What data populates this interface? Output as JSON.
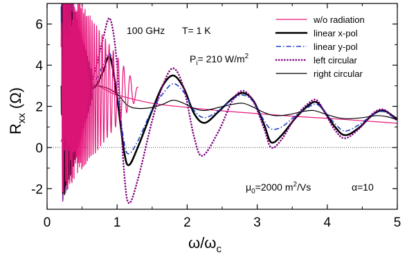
{
  "chart_data": {
    "type": "line",
    "xlim": [
      0,
      5
    ],
    "ylim": [
      -3,
      7
    ],
    "xticks": [
      0,
      1,
      2,
      3,
      4,
      5
    ],
    "yticks": [
      -2,
      0,
      2,
      4,
      6
    ],
    "xlabel": {
      "main": "ω/ω",
      "sub": "c"
    },
    "ylabel": {
      "main": "R",
      "sub": "xx",
      "unit": "(Ω)"
    },
    "annotations": {
      "frequency": "100 GHz",
      "temperature": "T= 1 K",
      "power": {
        "main": "P",
        "sub": "i",
        "mid": "= 210 W/m",
        "sup": "2"
      },
      "mobility": {
        "main": "μ",
        "sub": "0",
        "mid": "=2000 m",
        "sup": "2",
        "end": "/Vs"
      },
      "alpha": "α=10"
    },
    "legend_position": "top-right",
    "series": [
      {
        "name": "w/o radiation",
        "color": "#e6157a",
        "style": "solid-thin",
        "points": [
          [
            0.2,
            0.3
          ],
          [
            0.55,
            2.95
          ],
          [
            1.0,
            2.55
          ],
          [
            1.5,
            2.15
          ],
          [
            2.0,
            1.95
          ],
          [
            2.5,
            1.78
          ],
          [
            3.0,
            1.65
          ],
          [
            3.5,
            1.52
          ],
          [
            4.0,
            1.42
          ],
          [
            4.5,
            1.3
          ],
          [
            5.0,
            1.18
          ]
        ],
        "oscillation": "SdH oscillations decaying to ~ω/ω_c = 1.2"
      },
      {
        "name": "linear x-pol",
        "color": "#000000",
        "style": "solid-thick",
        "points": [
          [
            0.6,
            2.8
          ],
          [
            0.7,
            3.0
          ],
          [
            0.8,
            3.7
          ],
          [
            0.9,
            4.4
          ],
          [
            1.0,
            2.4
          ],
          [
            1.1,
            -0.2
          ],
          [
            1.17,
            -0.85
          ],
          [
            1.3,
            0.05
          ],
          [
            1.5,
            1.8
          ],
          [
            1.65,
            3.0
          ],
          [
            1.8,
            3.5
          ],
          [
            1.95,
            2.9
          ],
          [
            2.1,
            1.65
          ],
          [
            2.25,
            1.2
          ],
          [
            2.45,
            1.75
          ],
          [
            2.65,
            2.4
          ],
          [
            2.8,
            2.65
          ],
          [
            2.95,
            2.25
          ],
          [
            3.1,
            1.1
          ],
          [
            3.2,
            0.25
          ],
          [
            3.35,
            0.6
          ],
          [
            3.55,
            1.45
          ],
          [
            3.75,
            2.1
          ],
          [
            3.85,
            2.2
          ],
          [
            3.95,
            1.8
          ],
          [
            4.1,
            1.05
          ],
          [
            4.25,
            0.6
          ],
          [
            4.45,
            0.95
          ],
          [
            4.65,
            1.6
          ],
          [
            4.8,
            1.8
          ],
          [
            4.95,
            1.5
          ],
          [
            5.0,
            1.38
          ]
        ]
      },
      {
        "name": "linear y-pol",
        "color": "#1a3ec8",
        "style": "dashdot",
        "points": [
          [
            0.6,
            2.9
          ],
          [
            0.7,
            3.3
          ],
          [
            0.8,
            4.0
          ],
          [
            0.9,
            4.55
          ],
          [
            1.0,
            2.7
          ],
          [
            1.1,
            0.25
          ],
          [
            1.17,
            -0.3
          ],
          [
            1.3,
            0.35
          ],
          [
            1.5,
            1.85
          ],
          [
            1.65,
            2.6
          ],
          [
            1.8,
            3.1
          ],
          [
            1.95,
            2.7
          ],
          [
            2.1,
            1.8
          ],
          [
            2.25,
            1.45
          ],
          [
            2.45,
            1.8
          ],
          [
            2.65,
            2.35
          ],
          [
            2.8,
            2.55
          ],
          [
            2.95,
            2.2
          ],
          [
            3.1,
            1.3
          ],
          [
            3.2,
            0.9
          ],
          [
            3.35,
            1.0
          ],
          [
            3.55,
            1.55
          ],
          [
            3.75,
            2.0
          ],
          [
            3.85,
            2.1
          ],
          [
            3.95,
            1.8
          ],
          [
            4.1,
            1.2
          ],
          [
            4.25,
            0.8
          ],
          [
            4.45,
            1.1
          ],
          [
            4.65,
            1.6
          ],
          [
            4.8,
            1.75
          ],
          [
            4.95,
            1.45
          ],
          [
            5.0,
            1.33
          ]
        ]
      },
      {
        "name": "left circular",
        "color": "#800080",
        "style": "dotted-thick",
        "points": [
          [
            0.6,
            2.8
          ],
          [
            0.7,
            3.9
          ],
          [
            0.8,
            5.3
          ],
          [
            0.9,
            6.25
          ],
          [
            1.0,
            4.0
          ],
          [
            1.1,
            -1.2
          ],
          [
            1.17,
            -2.7
          ],
          [
            1.3,
            -1.5
          ],
          [
            1.5,
            1.3
          ],
          [
            1.65,
            3.0
          ],
          [
            1.8,
            3.85
          ],
          [
            1.95,
            2.9
          ],
          [
            2.1,
            0.5
          ],
          [
            2.22,
            -0.4
          ],
          [
            2.45,
            0.8
          ],
          [
            2.65,
            2.3
          ],
          [
            2.8,
            2.75
          ],
          [
            2.95,
            2.2
          ],
          [
            3.1,
            0.9
          ],
          [
            3.2,
            0.0
          ],
          [
            3.35,
            0.4
          ],
          [
            3.55,
            1.5
          ],
          [
            3.75,
            2.2
          ],
          [
            3.85,
            2.3
          ],
          [
            3.95,
            1.8
          ],
          [
            4.1,
            0.9
          ],
          [
            4.25,
            0.45
          ],
          [
            4.45,
            0.9
          ],
          [
            4.65,
            1.65
          ],
          [
            4.8,
            1.85
          ],
          [
            4.95,
            1.45
          ],
          [
            5.0,
            1.3
          ]
        ]
      },
      {
        "name": "right circular",
        "color": "#000000",
        "style": "solid-thin",
        "points": [
          [
            0.55,
            2.9
          ],
          [
            0.7,
            3.0
          ],
          [
            0.85,
            2.9
          ],
          [
            1.0,
            2.6
          ],
          [
            1.15,
            2.05
          ],
          [
            1.3,
            1.9
          ],
          [
            1.5,
            1.95
          ],
          [
            1.65,
            2.1
          ],
          [
            1.8,
            2.3
          ],
          [
            1.95,
            2.15
          ],
          [
            2.1,
            1.9
          ],
          [
            2.25,
            1.8
          ],
          [
            2.45,
            1.95
          ],
          [
            2.65,
            2.1
          ],
          [
            2.8,
            2.15
          ],
          [
            2.95,
            1.95
          ],
          [
            3.1,
            1.7
          ],
          [
            3.25,
            1.55
          ],
          [
            3.45,
            1.6
          ],
          [
            3.65,
            1.75
          ],
          [
            3.8,
            1.8
          ],
          [
            3.95,
            1.65
          ],
          [
            4.15,
            1.45
          ],
          [
            4.3,
            1.4
          ],
          [
            4.5,
            1.45
          ],
          [
            4.7,
            1.55
          ],
          [
            4.85,
            1.5
          ],
          [
            5.0,
            1.35
          ]
        ]
      }
    ],
    "reference_line": {
      "y": 0,
      "style": "dotted"
    }
  }
}
